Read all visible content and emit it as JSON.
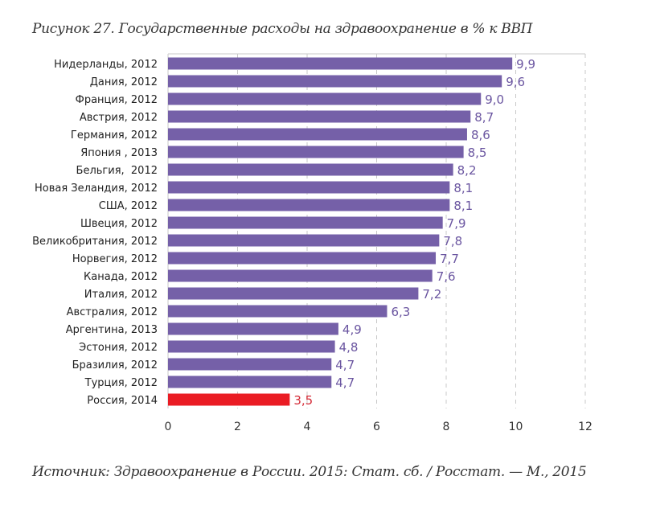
{
  "chart_data": {
    "type": "bar",
    "orientation": "horizontal",
    "title": "Рисунок 27. Государственные расходы на здравоохранение в % к ВВП",
    "source": "Источник: Здравоохранение в России. 2015: Стат. сб. / Росстат. — М., 2015",
    "xlabel": "",
    "ylabel": "",
    "xlim": [
      0,
      12
    ],
    "xticks": [
      0,
      2,
      4,
      6,
      8,
      10,
      12
    ],
    "tick_labels": [
      "0",
      "2",
      "4",
      "6",
      "8",
      "10",
      "12"
    ],
    "grid": "vertical-dashed",
    "categories": [
      "Нидерланды, 2012",
      "Дания, 2012",
      "Франция, 2012",
      "Австрия, 2012",
      "Германия, 2012",
      "Япония , 2013",
      "Бельгия,  2012",
      "Новая Зеландия, 2012",
      "США, 2012",
      "Швеция, 2012",
      "Великобритания, 2012",
      "Норвегия, 2012",
      "Канада, 2012",
      "Италия, 2012",
      "Австралия, 2012",
      "Аргентина, 2013",
      "Эстония, 2012",
      "Бразилия, 2012",
      "Турция, 2012",
      "Россия, 2014"
    ],
    "values": [
      9.9,
      9.6,
      9.0,
      8.7,
      8.6,
      8.5,
      8.2,
      8.1,
      8.1,
      7.9,
      7.8,
      7.7,
      7.6,
      7.2,
      6.3,
      4.9,
      4.8,
      4.7,
      4.7,
      3.5
    ],
    "value_labels": [
      "9,9",
      "9,6",
      "9,0",
      "8,7",
      "8,6",
      "8,5",
      "8,2",
      "8,1",
      "8,1",
      "7,9",
      "7,8",
      "7,7",
      "7,6",
      "7,2",
      "6,3",
      "4,9",
      "4,8",
      "4,7",
      "4,7",
      "3,5"
    ],
    "highlight_index": 19,
    "colors": {
      "bar": "#7560a8",
      "highlight_bar": "#ea1c24",
      "label": "#6a55a0",
      "highlight_label": "#d42a36",
      "grid": "#c8c8c8"
    }
  }
}
